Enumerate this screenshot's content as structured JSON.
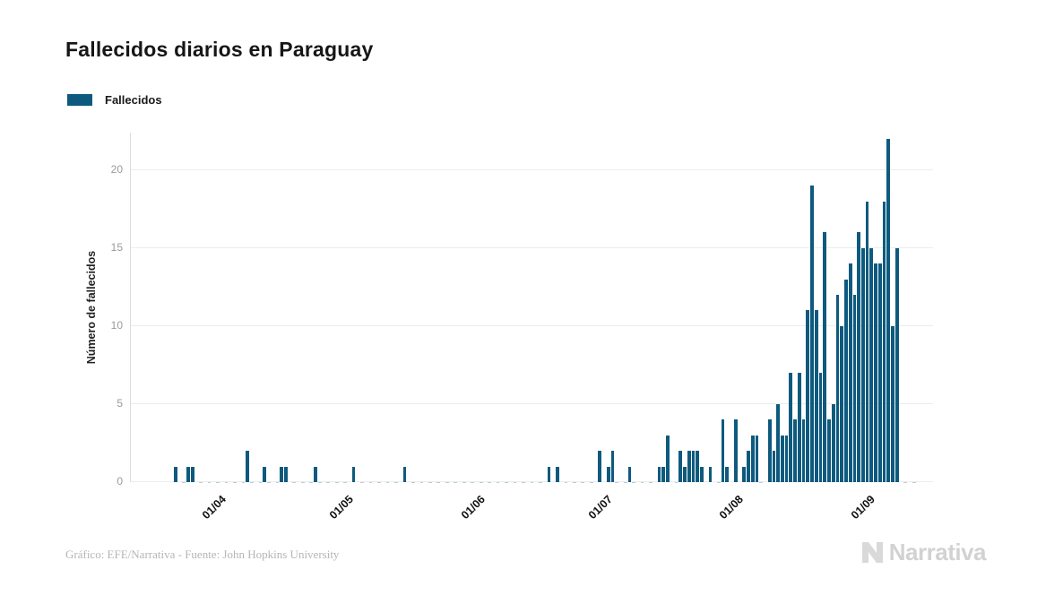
{
  "title": "Fallecidos diarios en Paraguay",
  "legend": {
    "label": "Fallecidos",
    "swatch_color": "#0e5a7e"
  },
  "footer": {
    "credit": "Gráfico: EFE/Narrativa - Fuente: John Hopkins University"
  },
  "logo": {
    "text": "Narrativa",
    "icon": "narrativa-n-icon",
    "color": "#d2d2d2"
  },
  "chart_data": {
    "type": "bar",
    "title": "Fallecidos diarios en Paraguay",
    "series_name": "Fallecidos",
    "xlabel": "",
    "ylabel": "Número de fallecidos",
    "bar_color": "#0e5a7e",
    "grid": true,
    "legend_position": "top-left",
    "ylim": [
      0,
      22.4
    ],
    "yticks": [
      0,
      5,
      10,
      15,
      20
    ],
    "x_start": "2020-03-12",
    "x_end": "2020-09-17",
    "xticks": [
      {
        "date": "2020-04-01",
        "label": "01/04"
      },
      {
        "date": "2020-05-01",
        "label": "01/05"
      },
      {
        "date": "2020-06-01",
        "label": "01/06"
      },
      {
        "date": "2020-07-01",
        "label": "01/07"
      },
      {
        "date": "2020-08-01",
        "label": "01/08"
      },
      {
        "date": "2020-09-01",
        "label": "01/09"
      }
    ],
    "points": [
      {
        "date": "2020-03-22",
        "value": 1
      },
      {
        "date": "2020-03-25",
        "value": 1
      },
      {
        "date": "2020-03-26",
        "value": 1
      },
      {
        "date": "2020-04-08",
        "value": 2
      },
      {
        "date": "2020-04-12",
        "value": 1
      },
      {
        "date": "2020-04-16",
        "value": 1
      },
      {
        "date": "2020-04-17",
        "value": 1
      },
      {
        "date": "2020-04-24",
        "value": 1
      },
      {
        "date": "2020-05-03",
        "value": 1
      },
      {
        "date": "2020-05-15",
        "value": 1
      },
      {
        "date": "2020-06-18",
        "value": 1
      },
      {
        "date": "2020-06-20",
        "value": 1
      },
      {
        "date": "2020-06-30",
        "value": 2
      },
      {
        "date": "2020-07-02",
        "value": 1
      },
      {
        "date": "2020-07-03",
        "value": 2
      },
      {
        "date": "2020-07-07",
        "value": 1
      },
      {
        "date": "2020-07-14",
        "value": 1
      },
      {
        "date": "2020-07-15",
        "value": 1
      },
      {
        "date": "2020-07-16",
        "value": 3
      },
      {
        "date": "2020-07-19",
        "value": 2
      },
      {
        "date": "2020-07-20",
        "value": 1
      },
      {
        "date": "2020-07-21",
        "value": 2
      },
      {
        "date": "2020-07-22",
        "value": 2
      },
      {
        "date": "2020-07-23",
        "value": 2
      },
      {
        "date": "2020-07-24",
        "value": 1
      },
      {
        "date": "2020-07-26",
        "value": 1
      },
      {
        "date": "2020-07-29",
        "value": 4
      },
      {
        "date": "2020-07-30",
        "value": 1
      },
      {
        "date": "2020-08-01",
        "value": 4
      },
      {
        "date": "2020-08-03",
        "value": 1
      },
      {
        "date": "2020-08-04",
        "value": 2
      },
      {
        "date": "2020-08-05",
        "value": 3
      },
      {
        "date": "2020-08-06",
        "value": 3
      },
      {
        "date": "2020-08-09",
        "value": 4
      },
      {
        "date": "2020-08-10",
        "value": 2
      },
      {
        "date": "2020-08-11",
        "value": 5
      },
      {
        "date": "2020-08-12",
        "value": 3
      },
      {
        "date": "2020-08-13",
        "value": 3
      },
      {
        "date": "2020-08-14",
        "value": 7
      },
      {
        "date": "2020-08-15",
        "value": 4
      },
      {
        "date": "2020-08-16",
        "value": 7
      },
      {
        "date": "2020-08-17",
        "value": 4
      },
      {
        "date": "2020-08-18",
        "value": 11
      },
      {
        "date": "2020-08-19",
        "value": 19
      },
      {
        "date": "2020-08-20",
        "value": 11
      },
      {
        "date": "2020-08-21",
        "value": 7
      },
      {
        "date": "2020-08-22",
        "value": 16
      },
      {
        "date": "2020-08-23",
        "value": 4
      },
      {
        "date": "2020-08-24",
        "value": 5
      },
      {
        "date": "2020-08-25",
        "value": 12
      },
      {
        "date": "2020-08-26",
        "value": 10
      },
      {
        "date": "2020-08-27",
        "value": 13
      },
      {
        "date": "2020-08-28",
        "value": 14
      },
      {
        "date": "2020-08-29",
        "value": 12
      },
      {
        "date": "2020-08-30",
        "value": 16
      },
      {
        "date": "2020-08-31",
        "value": 15
      },
      {
        "date": "2020-09-01",
        "value": 18
      },
      {
        "date": "2020-09-02",
        "value": 15
      },
      {
        "date": "2020-09-03",
        "value": 14
      },
      {
        "date": "2020-09-04",
        "value": 14
      },
      {
        "date": "2020-09-05",
        "value": 18
      },
      {
        "date": "2020-09-06",
        "value": 22
      },
      {
        "date": "2020-09-07",
        "value": 10
      },
      {
        "date": "2020-09-08",
        "value": 15
      }
    ]
  }
}
